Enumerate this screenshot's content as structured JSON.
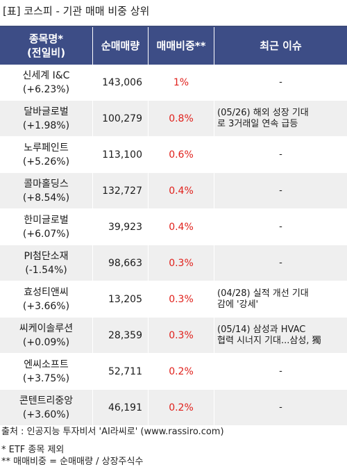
{
  "title": "[표] 코스피 - 기관 매매 비중 상위",
  "columns": {
    "name": "종목명*\n(전일비)",
    "name_line1": "종목명*",
    "name_line2": "(전일비)",
    "volume": "순매매량",
    "ratio": "매매비중**",
    "issue": "최근 이슈"
  },
  "rows": [
    {
      "name": "신세계 I&C",
      "change": "(+6.23%)",
      "volume": "143,006",
      "ratio": "1%",
      "issue": "-"
    },
    {
      "name": "달바글로벌",
      "change": "(+1.98%)",
      "volume": "100,279",
      "ratio": "0.8%",
      "issue": "(05/26) 해외 성장 기대\n로 3거래일 연속 급등"
    },
    {
      "name": "노루페인트",
      "change": "(+5.26%)",
      "volume": "113,100",
      "ratio": "0.6%",
      "issue": "-"
    },
    {
      "name": "콜마홀딩스",
      "change": "(+8.54%)",
      "volume": "132,727",
      "ratio": "0.4%",
      "issue": "-"
    },
    {
      "name": "한미글로벌",
      "change": "(+6.07%)",
      "volume": "39,923",
      "ratio": "0.4%",
      "issue": "-"
    },
    {
      "name": "PI첨단소재",
      "change": "(-1.54%)",
      "volume": "98,663",
      "ratio": "0.3%",
      "issue": "-"
    },
    {
      "name": "효성티앤씨",
      "change": "(+3.66%)",
      "volume": "13,205",
      "ratio": "0.3%",
      "issue": "(04/28) 실적 개선 기대\n감에 '강세'"
    },
    {
      "name": "씨케이솔루션",
      "change": "(+0.09%)",
      "volume": "28,359",
      "ratio": "0.3%",
      "issue": "(05/14) 삼성과 HVAC\n협력 시너지 기대...삼성, 獨"
    },
    {
      "name": "엔씨소프트",
      "change": "(+3.75%)",
      "volume": "52,711",
      "ratio": "0.2%",
      "issue": "-"
    },
    {
      "name": "콘텐트리중앙",
      "change": "(+3.60%)",
      "volume": "46,191",
      "ratio": "0.2%",
      "issue": "-"
    }
  ],
  "footer": {
    "source": "출처 : 인공지능 투자비서 'AI라씨로' (www.rassiro.com)",
    "note1": "* ETF 종목 제외",
    "note2": "** 매매비중 = 순매매량 / 상장주식수"
  },
  "colors": {
    "header_bg": "#3d4d86",
    "ratio_text": "#e0201b",
    "row_alt_bg": "#efefef"
  }
}
